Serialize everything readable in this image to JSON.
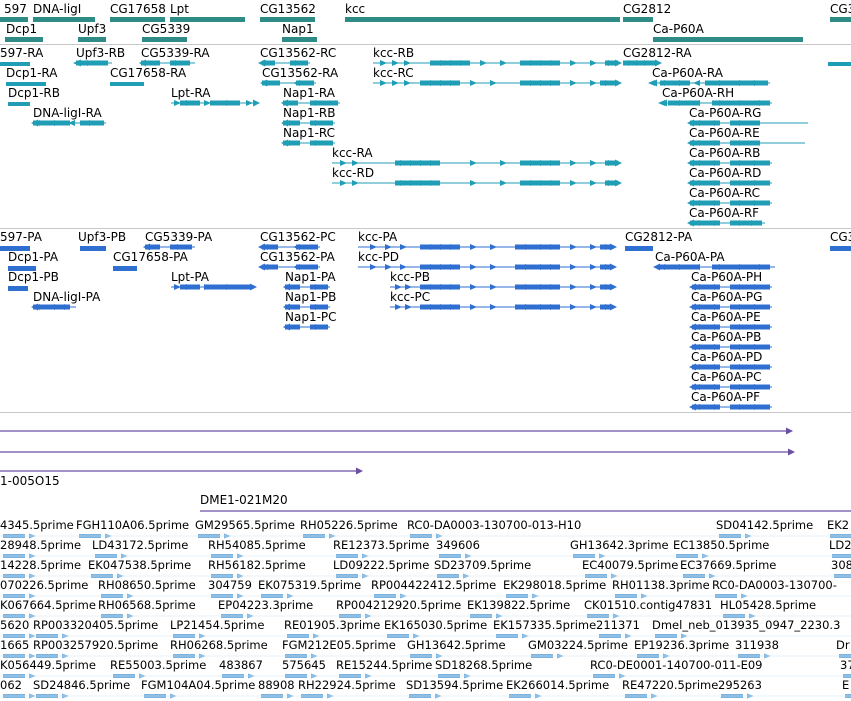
{
  "colors": {
    "gene": "#2e8b86",
    "mrna": "#1f9eb5",
    "protein": "#2f6fd0",
    "clone": "#6a4fa3",
    "est": "#7ab3e0",
    "divider": "#c8c8c8"
  },
  "gene_track": {
    "labels": [
      "597",
      "DNA-ligI",
      "Dcp1",
      "Upf3",
      "CG17658",
      "Lpt",
      "CG5339",
      "CG13562",
      "Nap1",
      "kcc",
      "CG2812",
      "Ca-P60A",
      "CG3"
    ]
  },
  "mrna_track": {
    "labels": [
      "597-RA",
      "Upf3-RB",
      "CG5339-RA",
      "CG13562-RC",
      "kcc-RB",
      "CG2812-RA",
      "Dcp1-RA",
      "CG17658-RA",
      "CG13562-RA",
      "kcc-RC",
      "Ca-P60A-RA",
      "Dcp1-RB",
      "Lpt-RA",
      "Nap1-RA",
      "Ca-P60A-RH",
      "DNA-ligI-RA",
      "Nap1-RB",
      "Ca-P60A-RG",
      "Nap1-RC",
      "Ca-P60A-RE",
      "kcc-RA",
      "Ca-P60A-RB",
      "kcc-RD",
      "Ca-P60A-RD",
      "Ca-P60A-RC",
      "Ca-P60A-RF"
    ]
  },
  "protein_track": {
    "labels": [
      "597-PA",
      "Upf3-PB",
      "CG5339-PA",
      "CG13562-PC",
      "kcc-PA",
      "CG2812-PA",
      "CG3",
      "Dcp1-PA",
      "CG17658-PA",
      "CG13562-PA",
      "kcc-PD",
      "Ca-P60A-PA",
      "Dcp1-PB",
      "Lpt-PA",
      "Nap1-PA",
      "kcc-PB",
      "Ca-P60A-PH",
      "DNA-ligI-PA",
      "Nap1-PB",
      "kcc-PC",
      "Ca-P60A-PG",
      "Nap1-PC",
      "Ca-P60A-PE",
      "Ca-P60A-PB",
      "Ca-P60A-PD",
      "Ca-P60A-PC",
      "Ca-P60A-PF"
    ]
  },
  "clone_track": {
    "labels": [
      "1-005O15",
      "DME1-021M20"
    ]
  },
  "est_track": {
    "labels": [
      "4345.5prime",
      "FGH110A06.5prime",
      "GM29565.5prime",
      "RH05226.5prime",
      "RC0-DA0003-130700-013-H10",
      "SD04142.5prime",
      "EK2",
      "28948.5prime",
      "LD43172.5prime",
      "RH54085.5prime",
      "RE12373.5prime",
      "349606",
      "GH13642.3prime",
      "EC13850.5prime",
      "LD2",
      "14228.5prime",
      "EK047538.5prime",
      "RH56182.5prime",
      "LD09222.5prime",
      "SD23709.5prime",
      "EC40079.5prime",
      "EC37669.5prime",
      "308",
      "070226.5prime",
      "RH08650.5prime",
      "304759",
      "EK075319.5prime",
      "RP004422412.5prime",
      "EK298018.5prime",
      "RH01138.3prime",
      "RC0-DA0003-130700-",
      "K067664.5prime",
      "RH06568.5prime",
      "EP04223.3prime",
      "RP004212920.5prime",
      "EK139822.5prime",
      "CK01510.contig47831",
      "HL05428.5prime",
      "5620",
      "RP003320405.5prime",
      "LP21454.5prime",
      "RE01905.3prime",
      "EK165030.5prime",
      "EK157335.5prime",
      "211371",
      "Dmel_neb_013935_0947_2230.3",
      "1665",
      "RP003257920.5prime",
      "RH06268.5prime",
      "FGM212E05.5prime",
      "GH13642.5prime",
      "GM03224.5prime",
      "EP19236.3prime",
      "311938",
      "Dr",
      "K056449.5prime",
      "RE55003.5prime",
      "483867",
      "575645",
      "RE15244.5prime",
      "SD18268.5prime",
      "RC0-DE0001-140700-011-E09",
      "37",
      "062",
      "SD24846.5prime",
      "FGM104A04.5prime",
      "88908",
      "RH22924.5prime",
      "SD13594.5prime",
      "EK266014.5prime",
      "RE47220.5prime",
      "295263",
      "E"
    ]
  }
}
